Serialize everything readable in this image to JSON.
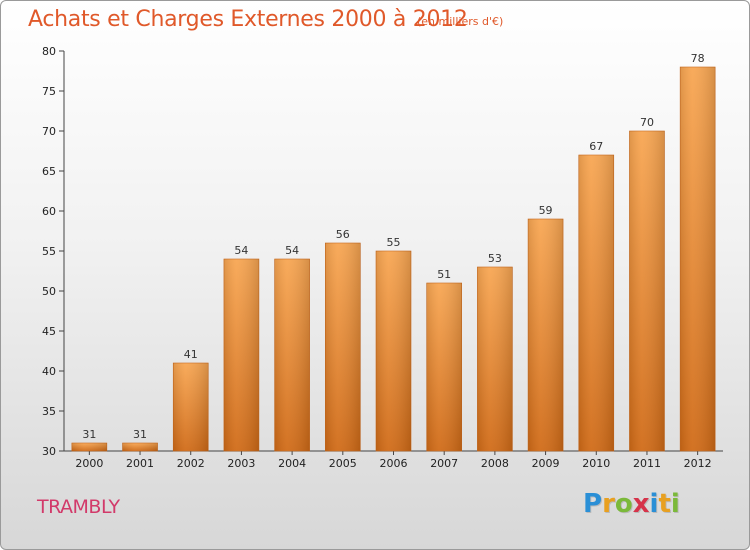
{
  "title": "Achats et Charges Externes 2000 à 2012",
  "subtitle": "(en milliers d'€)",
  "place": "TRAMBLY",
  "logo": {
    "letters": [
      "P",
      "r",
      "o",
      "x",
      "i",
      "t",
      "i"
    ],
    "colors": [
      "#2a8fd6",
      "#e8a020",
      "#7bb93a",
      "#d6334a",
      "#2a8fd6",
      "#e8a020",
      "#7bb93a"
    ]
  },
  "colors": {
    "bar_light": "#f8a652",
    "bar_dark": "#d06a16",
    "title": "#e0592a",
    "place": "#d23a6a"
  },
  "chart_data": {
    "type": "bar",
    "categories": [
      "2000",
      "2001",
      "2002",
      "2003",
      "2004",
      "2005",
      "2006",
      "2007",
      "2008",
      "2009",
      "2010",
      "2011",
      "2012"
    ],
    "values": [
      31,
      31,
      41,
      54,
      54,
      56,
      55,
      51,
      53,
      59,
      67,
      70,
      78
    ],
    "value_labels": [
      "31",
      "31",
      "41",
      "54",
      "54",
      "56",
      "55",
      "51",
      "53",
      "59",
      "67",
      "70",
      "78"
    ],
    "yticks": [
      "30",
      "35",
      "40",
      "45",
      "50",
      "55",
      "60",
      "65",
      "70",
      "75",
      "80"
    ],
    "ylim": [
      30,
      80
    ],
    "grid": false,
    "title": "Achats et Charges Externes 2000 à 2012",
    "xlabel": "",
    "ylabel": ""
  }
}
